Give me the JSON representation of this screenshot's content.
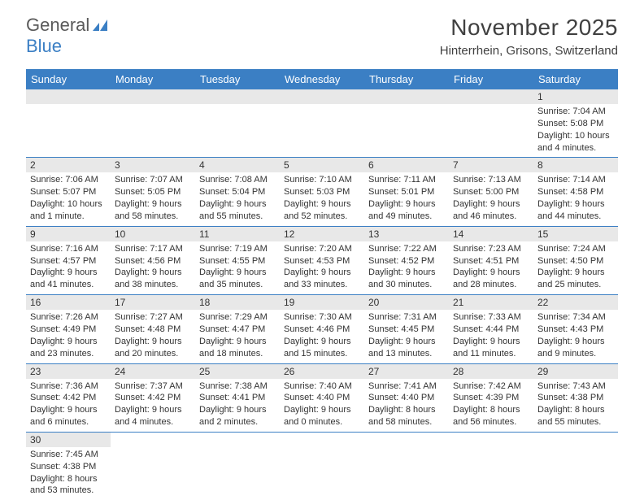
{
  "logo": {
    "general": "General",
    "blue": "Blue"
  },
  "title": "November 2025",
  "location": "Hinterrhein, Grisons, Switzerland",
  "colors": {
    "header_bg": "#3b7fc4",
    "header_text": "#ffffff",
    "daynum_bg": "#e8e8e8",
    "rule": "#3b7fc4",
    "text": "#333333",
    "logo_gray": "#5a5a5a",
    "logo_blue": "#3b7fc4"
  },
  "weekdays": [
    "Sunday",
    "Monday",
    "Tuesday",
    "Wednesday",
    "Thursday",
    "Friday",
    "Saturday"
  ],
  "weeks": [
    [
      null,
      null,
      null,
      null,
      null,
      null,
      {
        "n": "1",
        "sr": "Sunrise: 7:04 AM",
        "ss": "Sunset: 5:08 PM",
        "d1": "Daylight: 10 hours",
        "d2": "and 4 minutes."
      }
    ],
    [
      {
        "n": "2",
        "sr": "Sunrise: 7:06 AM",
        "ss": "Sunset: 5:07 PM",
        "d1": "Daylight: 10 hours",
        "d2": "and 1 minute."
      },
      {
        "n": "3",
        "sr": "Sunrise: 7:07 AM",
        "ss": "Sunset: 5:05 PM",
        "d1": "Daylight: 9 hours",
        "d2": "and 58 minutes."
      },
      {
        "n": "4",
        "sr": "Sunrise: 7:08 AM",
        "ss": "Sunset: 5:04 PM",
        "d1": "Daylight: 9 hours",
        "d2": "and 55 minutes."
      },
      {
        "n": "5",
        "sr": "Sunrise: 7:10 AM",
        "ss": "Sunset: 5:03 PM",
        "d1": "Daylight: 9 hours",
        "d2": "and 52 minutes."
      },
      {
        "n": "6",
        "sr": "Sunrise: 7:11 AM",
        "ss": "Sunset: 5:01 PM",
        "d1": "Daylight: 9 hours",
        "d2": "and 49 minutes."
      },
      {
        "n": "7",
        "sr": "Sunrise: 7:13 AM",
        "ss": "Sunset: 5:00 PM",
        "d1": "Daylight: 9 hours",
        "d2": "and 46 minutes."
      },
      {
        "n": "8",
        "sr": "Sunrise: 7:14 AM",
        "ss": "Sunset: 4:58 PM",
        "d1": "Daylight: 9 hours",
        "d2": "and 44 minutes."
      }
    ],
    [
      {
        "n": "9",
        "sr": "Sunrise: 7:16 AM",
        "ss": "Sunset: 4:57 PM",
        "d1": "Daylight: 9 hours",
        "d2": "and 41 minutes."
      },
      {
        "n": "10",
        "sr": "Sunrise: 7:17 AM",
        "ss": "Sunset: 4:56 PM",
        "d1": "Daylight: 9 hours",
        "d2": "and 38 minutes."
      },
      {
        "n": "11",
        "sr": "Sunrise: 7:19 AM",
        "ss": "Sunset: 4:55 PM",
        "d1": "Daylight: 9 hours",
        "d2": "and 35 minutes."
      },
      {
        "n": "12",
        "sr": "Sunrise: 7:20 AM",
        "ss": "Sunset: 4:53 PM",
        "d1": "Daylight: 9 hours",
        "d2": "and 33 minutes."
      },
      {
        "n": "13",
        "sr": "Sunrise: 7:22 AM",
        "ss": "Sunset: 4:52 PM",
        "d1": "Daylight: 9 hours",
        "d2": "and 30 minutes."
      },
      {
        "n": "14",
        "sr": "Sunrise: 7:23 AM",
        "ss": "Sunset: 4:51 PM",
        "d1": "Daylight: 9 hours",
        "d2": "and 28 minutes."
      },
      {
        "n": "15",
        "sr": "Sunrise: 7:24 AM",
        "ss": "Sunset: 4:50 PM",
        "d1": "Daylight: 9 hours",
        "d2": "and 25 minutes."
      }
    ],
    [
      {
        "n": "16",
        "sr": "Sunrise: 7:26 AM",
        "ss": "Sunset: 4:49 PM",
        "d1": "Daylight: 9 hours",
        "d2": "and 23 minutes."
      },
      {
        "n": "17",
        "sr": "Sunrise: 7:27 AM",
        "ss": "Sunset: 4:48 PM",
        "d1": "Daylight: 9 hours",
        "d2": "and 20 minutes."
      },
      {
        "n": "18",
        "sr": "Sunrise: 7:29 AM",
        "ss": "Sunset: 4:47 PM",
        "d1": "Daylight: 9 hours",
        "d2": "and 18 minutes."
      },
      {
        "n": "19",
        "sr": "Sunrise: 7:30 AM",
        "ss": "Sunset: 4:46 PM",
        "d1": "Daylight: 9 hours",
        "d2": "and 15 minutes."
      },
      {
        "n": "20",
        "sr": "Sunrise: 7:31 AM",
        "ss": "Sunset: 4:45 PM",
        "d1": "Daylight: 9 hours",
        "d2": "and 13 minutes."
      },
      {
        "n": "21",
        "sr": "Sunrise: 7:33 AM",
        "ss": "Sunset: 4:44 PM",
        "d1": "Daylight: 9 hours",
        "d2": "and 11 minutes."
      },
      {
        "n": "22",
        "sr": "Sunrise: 7:34 AM",
        "ss": "Sunset: 4:43 PM",
        "d1": "Daylight: 9 hours",
        "d2": "and 9 minutes."
      }
    ],
    [
      {
        "n": "23",
        "sr": "Sunrise: 7:36 AM",
        "ss": "Sunset: 4:42 PM",
        "d1": "Daylight: 9 hours",
        "d2": "and 6 minutes."
      },
      {
        "n": "24",
        "sr": "Sunrise: 7:37 AM",
        "ss": "Sunset: 4:42 PM",
        "d1": "Daylight: 9 hours",
        "d2": "and 4 minutes."
      },
      {
        "n": "25",
        "sr": "Sunrise: 7:38 AM",
        "ss": "Sunset: 4:41 PM",
        "d1": "Daylight: 9 hours",
        "d2": "and 2 minutes."
      },
      {
        "n": "26",
        "sr": "Sunrise: 7:40 AM",
        "ss": "Sunset: 4:40 PM",
        "d1": "Daylight: 9 hours",
        "d2": "and 0 minutes."
      },
      {
        "n": "27",
        "sr": "Sunrise: 7:41 AM",
        "ss": "Sunset: 4:40 PM",
        "d1": "Daylight: 8 hours",
        "d2": "and 58 minutes."
      },
      {
        "n": "28",
        "sr": "Sunrise: 7:42 AM",
        "ss": "Sunset: 4:39 PM",
        "d1": "Daylight: 8 hours",
        "d2": "and 56 minutes."
      },
      {
        "n": "29",
        "sr": "Sunrise: 7:43 AM",
        "ss": "Sunset: 4:38 PM",
        "d1": "Daylight: 8 hours",
        "d2": "and 55 minutes."
      }
    ],
    [
      {
        "n": "30",
        "sr": "Sunrise: 7:45 AM",
        "ss": "Sunset: 4:38 PM",
        "d1": "Daylight: 8 hours",
        "d2": "and 53 minutes."
      },
      null,
      null,
      null,
      null,
      null,
      null
    ]
  ]
}
